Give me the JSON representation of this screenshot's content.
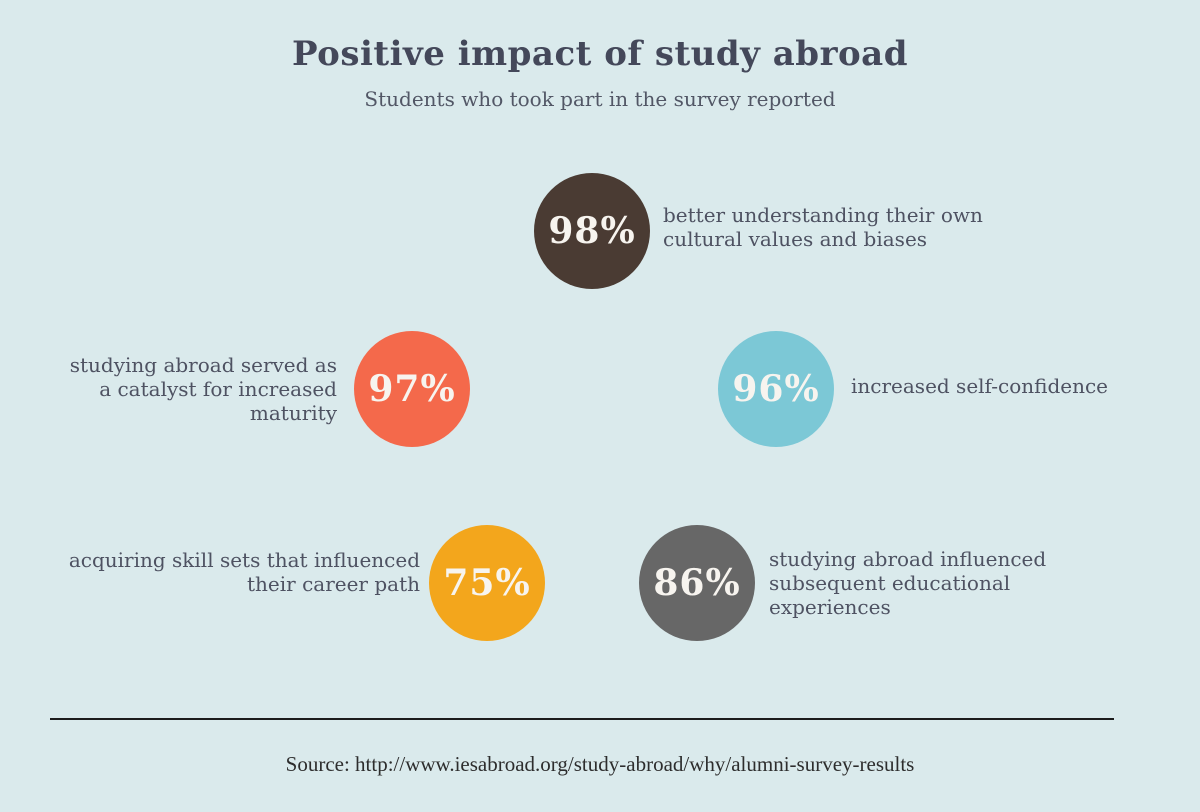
{
  "header": {
    "title": "Positive impact of study abroad",
    "subtitle": "Students who took part in the survey reported"
  },
  "stats": [
    {
      "value": "98%",
      "color": "#4a3b33",
      "text_side": "right",
      "lines": [
        "better understanding their own",
        "cultural values and biases"
      ],
      "description": "better understanding their own cultural values and biases"
    },
    {
      "value": "97%",
      "color": "#f4694b",
      "text_side": "left",
      "lines": [
        "studying abroad served as",
        "a catalyst for increased",
        "maturity"
      ],
      "description": "studying abroad served as a catalyst for increased maturity"
    },
    {
      "value": "96%",
      "color": "#7cc8d6",
      "text_side": "right",
      "lines": [
        "increased self-confidence"
      ],
      "description": "increased self-confidence"
    },
    {
      "value": "75%",
      "color": "#f3a61c",
      "text_side": "left",
      "lines": [
        "acquiring skill sets that influenced",
        "their career path"
      ],
      "description": "acquiring skill sets that influenced their career path"
    },
    {
      "value": "86%",
      "color": "#676767",
      "text_side": "right",
      "lines": [
        "studying abroad influenced",
        "subsequent educational",
        "experiences"
      ],
      "description": "studying abroad influenced subsequent educational experiences"
    }
  ],
  "footer": {
    "source": "Source: http://www.iesabroad.org/study-abroad/why/alumni-survey-results"
  },
  "colors": {
    "background": "#daeaec",
    "title_text": "#44485a",
    "label_text": "#4e5262",
    "circle_text": "#f7f4ef",
    "divider": "#1c1c1c"
  },
  "chart_data": {
    "type": "table",
    "title": "Positive impact of study abroad",
    "subtitle": "Students who took part in the survey reported",
    "categories": [
      "better understanding their own cultural values and biases",
      "studying abroad served as a catalyst for increased maturity",
      "increased self-confidence",
      "acquiring skill sets that influenced their career path",
      "studying abroad influenced subsequent educational experiences"
    ],
    "values": [
      98,
      97,
      96,
      75,
      86
    ],
    "unit": "%",
    "legend_position": "none",
    "layout": "percentage stat circles; colors brown/coral/teal/amber/gray",
    "source": "Source: http://www.iesabroad.org/study-abroad/why/alumni-survey-results"
  }
}
